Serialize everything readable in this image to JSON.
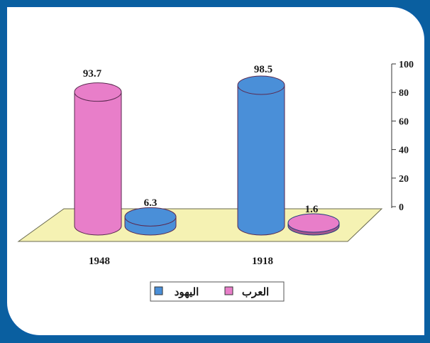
{
  "chart_data": {
    "type": "bar",
    "style": "3d-cylinder",
    "categories": [
      "1948",
      "1918"
    ],
    "series": [
      {
        "name": "العرب",
        "values": [
          93.7,
          1.6
        ],
        "color": "#e87ec9"
      },
      {
        "name": "اليهود",
        "values": [
          6.3,
          98.5
        ],
        "color": "#4a8fd8"
      }
    ],
    "ylim": [
      0,
      100
    ],
    "yticks": [
      "0",
      "20",
      "40",
      "60",
      "80",
      "100"
    ],
    "y_axis_side": "right",
    "grid": false,
    "legend_position": "bottom-center",
    "floor_color": "#f5f2b3"
  }
}
